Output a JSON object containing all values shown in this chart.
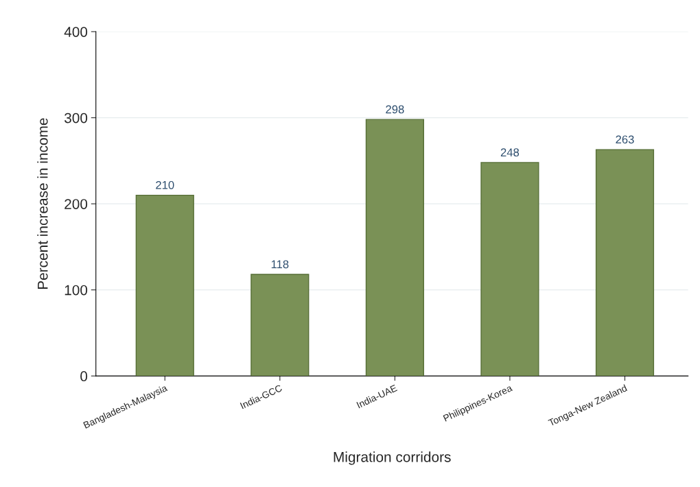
{
  "chart_data": {
    "type": "bar",
    "xlabel": "Migration corridors",
    "ylabel": "Percent increase in income",
    "categories": [
      "Bangladesh-Malaysia",
      "India-GCC",
      "India-UAE",
      "Philippines-Korea",
      "Tonga-New Zealand"
    ],
    "values": [
      210,
      118,
      298,
      248,
      263
    ],
    "color": "#7a9156",
    "ylim": [
      0,
      400
    ],
    "yticks": [
      0,
      100,
      200,
      300,
      400
    ],
    "grid": "y",
    "data_labels": true
  }
}
